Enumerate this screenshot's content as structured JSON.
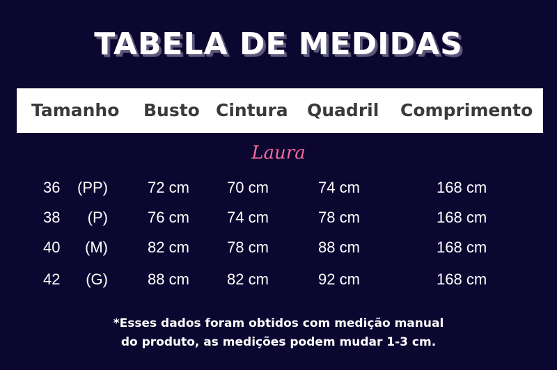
{
  "title": "TABELA DE MEDIDAS",
  "headers": [
    "Tamanho",
    "Busto",
    "Cintura",
    "Quadril",
    "Comprimento"
  ],
  "model": "Laura",
  "rows": [
    {
      "num": "36",
      "size": "(PP)",
      "busto": "72 cm",
      "cintura": "70 cm",
      "quadril": "74 cm",
      "comprimento": "168 cm"
    },
    {
      "num": "38",
      "size": "(P)",
      "busto": "76 cm",
      "cintura": "74 cm",
      "quadril": "78 cm",
      "comprimento": "168 cm"
    },
    {
      "num": "40",
      "size": "(M)",
      "busto": "82 cm",
      "cintura": "78 cm",
      "quadril": "88 cm",
      "comprimento": "168 cm"
    },
    {
      "num": "42",
      "size": "(G)",
      "busto": "88 cm",
      "cintura": "82 cm",
      "quadril": "92 cm",
      "comprimento": "168 cm"
    }
  ],
  "note": [
    "*Esses dados foram obtidos com medição manual",
    "do produto, as medições podem mudar 1-3 cm."
  ],
  "colors": {
    "background": "#0b0730",
    "accent": "#f06a9a",
    "header_text": "#3a3a3a"
  }
}
